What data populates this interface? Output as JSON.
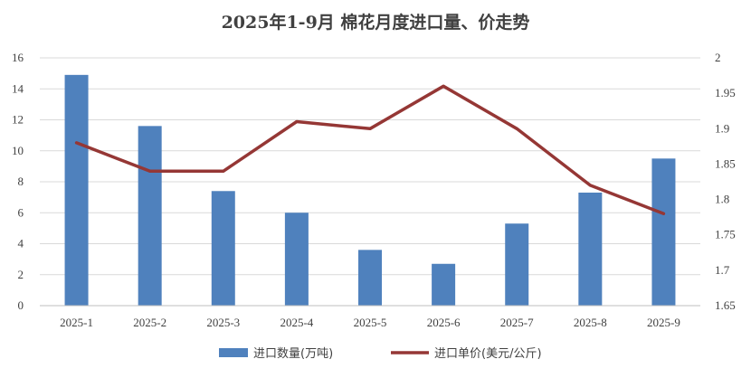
{
  "chart_data": {
    "type": "bar",
    "title": "2025年1-9月 棉花月度进口量、价走势",
    "categories": [
      "2025-1",
      "2025-2",
      "2025-3",
      "2025-4",
      "2025-5",
      "2025-6",
      "2025-7",
      "2025-8",
      "2025-9"
    ],
    "series": [
      {
        "name": "进口数量(万吨)",
        "type": "bar",
        "axis": "left",
        "color": "#4F81BD",
        "values": [
          14.9,
          11.6,
          7.4,
          6.0,
          3.6,
          2.7,
          5.3,
          7.3,
          9.5
        ]
      },
      {
        "name": "进口单价(美元/公斤)",
        "type": "line",
        "axis": "right",
        "color": "#953735",
        "values": [
          1.88,
          1.84,
          1.84,
          1.91,
          1.9,
          1.96,
          1.9,
          1.82,
          1.78
        ]
      }
    ],
    "y_left": {
      "min": 0,
      "max": 16,
      "ticks": [
        "0",
        "2",
        "4",
        "6",
        "8",
        "10",
        "12",
        "14",
        "16"
      ]
    },
    "y_right": {
      "min": 1.65,
      "max": 2.0,
      "ticks": [
        "1.65",
        "1.7",
        "1.75",
        "1.8",
        "1.85",
        "1.9",
        "1.95",
        "2"
      ]
    },
    "grid": true,
    "legend_position": "bottom"
  }
}
